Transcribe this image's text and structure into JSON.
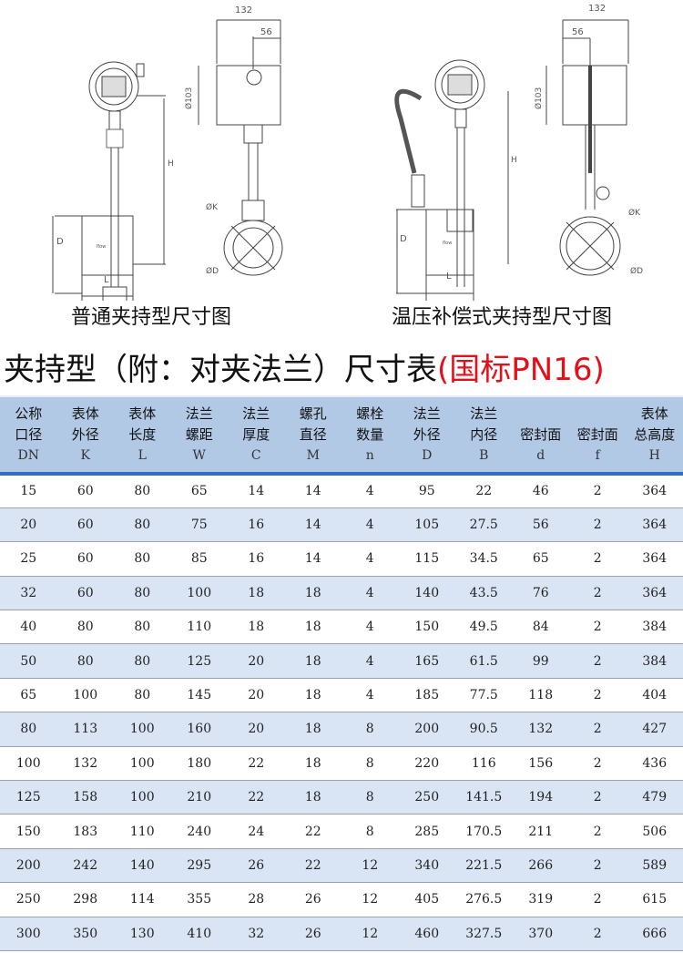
{
  "drawings": {
    "left": {
      "caption": "普通夹持型尺寸图",
      "dims": {
        "width": "132",
        "offset": "56",
        "head_dia": "Ø103",
        "height": "H",
        "flange_d": "D",
        "length": "L",
        "k": "ØK",
        "d": "ØD"
      },
      "flow_label": "flow"
    },
    "right": {
      "caption": "温压补偿式夹持型尺寸图",
      "dims": {
        "width": "132",
        "offset": "56",
        "head_dia": "Ø103",
        "height": "H",
        "flange_d": "D",
        "length": "L",
        "k": "ØK",
        "d": "ØD"
      },
      "flow_label": "flow"
    }
  },
  "title": {
    "main": "夹持型（附：对夹法兰）尺寸表",
    "standard": "(国标PN16)"
  },
  "table": {
    "columns": [
      {
        "l1": "公称",
        "l2": "口径",
        "sym": "DN"
      },
      {
        "l1": "表体",
        "l2": "外径",
        "sym": "K"
      },
      {
        "l1": "表体",
        "l2": "长度",
        "sym": "L"
      },
      {
        "l1": "法兰",
        "l2": "螺距",
        "sym": "W"
      },
      {
        "l1": "法兰",
        "l2": "厚度",
        "sym": "C"
      },
      {
        "l1": "螺孔",
        "l2": "直径",
        "sym": "M"
      },
      {
        "l1": "螺栓",
        "l2": "数量",
        "sym": "n"
      },
      {
        "l1": "法兰",
        "l2": "外径",
        "sym": "D"
      },
      {
        "l1": "法兰",
        "l2": "内径",
        "sym": "B"
      },
      {
        "l1": "",
        "l2": "密封面",
        "sym": "d"
      },
      {
        "l1": "",
        "l2": "密封面",
        "sym": "f"
      },
      {
        "l1": "表体",
        "l2": "总高度",
        "sym": "H"
      }
    ],
    "rows": [
      [
        "15",
        "60",
        "80",
        "65",
        "14",
        "14",
        "4",
        "95",
        "22",
        "46",
        "2",
        "364"
      ],
      [
        "20",
        "60",
        "80",
        "75",
        "16",
        "14",
        "4",
        "105",
        "27.5",
        "56",
        "2",
        "364"
      ],
      [
        "25",
        "60",
        "80",
        "85",
        "16",
        "14",
        "4",
        "115",
        "34.5",
        "65",
        "2",
        "364"
      ],
      [
        "32",
        "60",
        "80",
        "100",
        "18",
        "18",
        "4",
        "140",
        "43.5",
        "76",
        "2",
        "364"
      ],
      [
        "40",
        "80",
        "80",
        "110",
        "18",
        "18",
        "4",
        "150",
        "49.5",
        "84",
        "2",
        "384"
      ],
      [
        "50",
        "80",
        "80",
        "125",
        "20",
        "18",
        "4",
        "165",
        "61.5",
        "99",
        "2",
        "384"
      ],
      [
        "65",
        "100",
        "80",
        "145",
        "20",
        "18",
        "4",
        "185",
        "77.5",
        "118",
        "2",
        "404"
      ],
      [
        "80",
        "113",
        "100",
        "160",
        "20",
        "18",
        "8",
        "200",
        "90.5",
        "132",
        "2",
        "427"
      ],
      [
        "100",
        "132",
        "100",
        "180",
        "22",
        "18",
        "8",
        "220",
        "116",
        "156",
        "2",
        "436"
      ],
      [
        "125",
        "158",
        "100",
        "210",
        "22",
        "18",
        "8",
        "250",
        "141.5",
        "194",
        "2",
        "479"
      ],
      [
        "150",
        "183",
        "110",
        "240",
        "24",
        "22",
        "8",
        "285",
        "170.5",
        "211",
        "2",
        "506"
      ],
      [
        "200",
        "242",
        "140",
        "295",
        "26",
        "22",
        "12",
        "340",
        "221.5",
        "266",
        "2",
        "589"
      ],
      [
        "250",
        "298",
        "114",
        "355",
        "28",
        "26",
        "12",
        "405",
        "276.5",
        "319",
        "2",
        "615"
      ],
      [
        "300",
        "350",
        "130",
        "410",
        "32",
        "26",
        "12",
        "460",
        "327.5",
        "370",
        "2",
        "666"
      ]
    ]
  },
  "colors": {
    "header_bg": "#b2c9e6",
    "alt_row": "#d9e4f4",
    "accent_line": "#2f6fc2",
    "standard_red": "#e3101a"
  }
}
